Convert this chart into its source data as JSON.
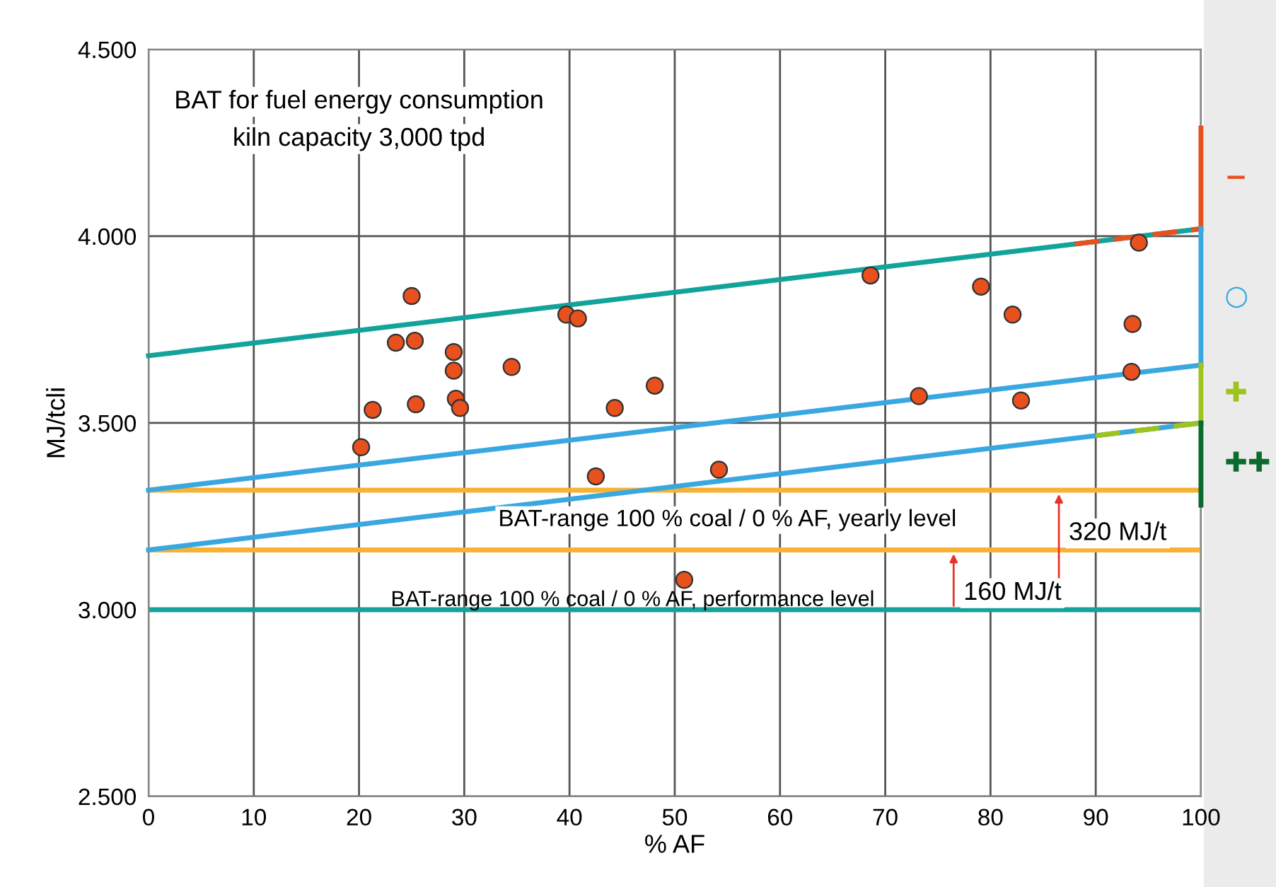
{
  "chart_data": {
    "type": "scatter",
    "title": "BAT for fuel energy consumption",
    "subtitle": "kiln capacity 3,000 tpd",
    "xlabel": "% AF",
    "ylabel": "MJ/tcli",
    "xlim": [
      0,
      100
    ],
    "ylim": [
      2500,
      4500
    ],
    "xticks": [
      0,
      10,
      20,
      30,
      40,
      50,
      60,
      70,
      80,
      90,
      100
    ],
    "yticks": [
      {
        "value": 2500,
        "label": "2.500"
      },
      {
        "value": 3000,
        "label": "3.000"
      },
      {
        "value": 3500,
        "label": "3.500"
      },
      {
        "value": 4000,
        "label": "4.000"
      },
      {
        "value": 4500,
        "label": "4.500"
      }
    ],
    "grid": true,
    "marker": "circle",
    "series": [
      {
        "type": "line",
        "color": "#13a39a",
        "x": [
          0,
          100
        ],
        "values": [
          3680,
          4020
        ],
        "line_style": "solid",
        "marker": "none"
      },
      {
        "type": "line",
        "color": "#3aa8e0",
        "x": [
          0,
          100
        ],
        "values": [
          3320,
          3655
        ],
        "line_style": "solid",
        "marker": "none"
      },
      {
        "type": "line",
        "color": "#3aa8e0",
        "x": [
          0,
          100
        ],
        "values": [
          3160,
          3500
        ],
        "line_style": "solid",
        "marker": "none"
      },
      {
        "type": "line",
        "color": "#e8501e",
        "x": [
          88,
          100
        ],
        "values": [
          3979,
          4020
        ],
        "line_style": "dashed",
        "marker": "none"
      },
      {
        "type": "line",
        "color": "#9dc31c",
        "x": [
          90,
          100
        ],
        "values": [
          3466,
          3500
        ],
        "line_style": "dashed",
        "marker": "none"
      },
      {
        "type": "line",
        "name": "−",
        "color": "#e8501e",
        "x": [
          100,
          100
        ],
        "values": [
          4020,
          4290
        ],
        "line_style": "solid",
        "marker": "none"
      },
      {
        "type": "line",
        "name": "○",
        "color": "#3aa8e0",
        "x": [
          100,
          100
        ],
        "values": [
          3655,
          4020
        ],
        "line_style": "solid",
        "marker": "none"
      },
      {
        "type": "line",
        "name": "✚",
        "color": "#9dc31c",
        "x": [
          100,
          100
        ],
        "values": [
          3500,
          3655
        ],
        "line_style": "solid",
        "marker": "none"
      },
      {
        "type": "line",
        "name": "✚✚",
        "color": "#0b6b2f",
        "x": [
          100,
          100
        ],
        "values": [
          3280,
          3500
        ],
        "line_style": "solid",
        "marker": "none"
      },
      {
        "color": "#e8501e",
        "x": [
          20.2,
          21.3,
          23.5,
          25.0,
          25.3,
          25.4,
          29.0,
          29.0,
          29.2,
          29.6,
          34.5,
          39.7,
          40.8,
          42.5,
          44.3,
          48.1,
          50.9,
          54.2,
          68.6,
          73.2,
          79.1,
          82.1,
          82.9,
          93.4,
          93.5,
          94.1
        ],
        "values": [
          3435,
          3535,
          3715,
          3840,
          3720,
          3550,
          3690,
          3640,
          3565,
          3540,
          3650,
          3790,
          3780,
          3357,
          3540,
          3600,
          3080,
          3375,
          3895,
          3572,
          3865,
          3790,
          3560,
          3637,
          3765,
          3983
        ]
      }
    ],
    "ref_lines": [
      {
        "axis": "y",
        "value": 3320,
        "color": "#f8b133"
      },
      {
        "axis": "y",
        "value": 3160,
        "color": "#f8b133"
      },
      {
        "axis": "y",
        "value": 3000,
        "color": "#13a39a"
      }
    ],
    "annotations": [
      "BAT-range 100 % coal / 0 % AF, yearly level",
      "BAT-range 100 % coal / 0 % AF, performance level",
      {
        "text": "320 MJ/t",
        "x": 86.5,
        "y": 3320
      },
      {
        "text": "160 MJ/t",
        "x": 76.5,
        "y": 3160
      }
    ]
  }
}
